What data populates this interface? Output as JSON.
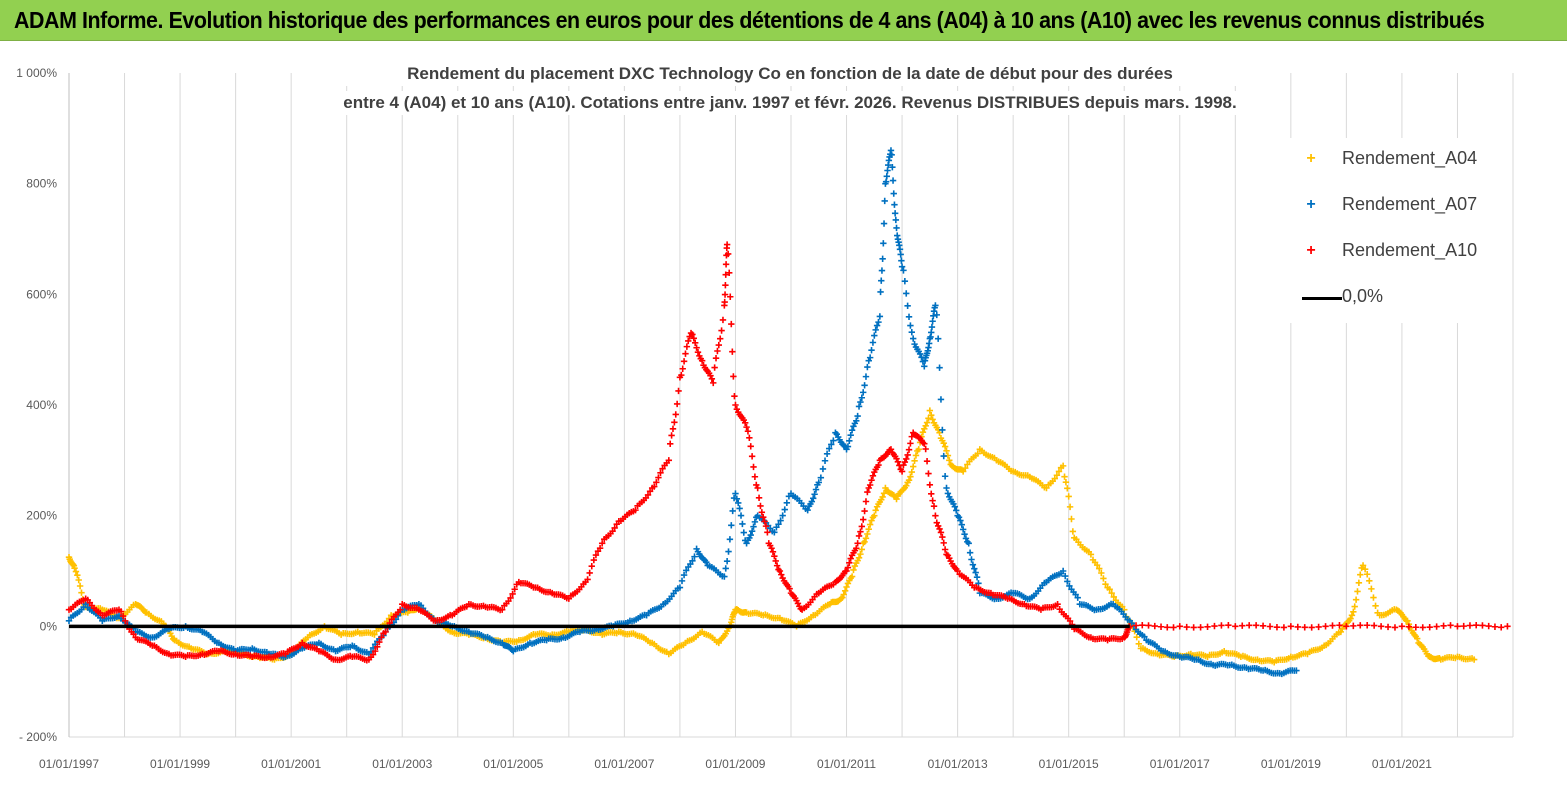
{
  "header": {
    "title": "ADAM Informe. Evolution historique des performances en euros pour des détentions de 4 ans (A04) à 10 ans (A10) avec les revenus connus distribués"
  },
  "chart_data": {
    "type": "scatter",
    "title_line1": "Rendement du placement DXC Technology Co en fonction de la date de début pour des durées",
    "title_line2": "entre 4 (A04) et 10 ans (A10).  Cotations entre janv. 1997 et févr. 2026. Revenus DISTRIBUES depuis mars. 1998.",
    "x_range": [
      "01/01/1997",
      "01/01/2023"
    ],
    "y_range": [
      -200,
      1000
    ],
    "y_ticks": [
      -200,
      0,
      200,
      400,
      600,
      800,
      1000
    ],
    "y_tick_labels": [
      "- 200%",
      "0%",
      "200%",
      "400%",
      "600%",
      "800%",
      "1 000%"
    ],
    "x_tick_labels": [
      "01/01/1997",
      "01/01/1999",
      "01/01/2001",
      "01/01/2003",
      "01/01/2005",
      "01/01/2007",
      "01/01/2009",
      "01/01/2011",
      "01/01/2013",
      "01/01/2015",
      "01/01/2017",
      "01/01/2019",
      "01/01/2021"
    ],
    "x_tick_years": [
      1997,
      1999,
      2001,
      2003,
      2005,
      2007,
      2009,
      2011,
      2013,
      2015,
      2017,
      2019,
      2021
    ],
    "grid": "vertical",
    "legend_position": "right",
    "series": [
      {
        "name": "Rendement_A04",
        "color": "#ffc000",
        "marker": "+",
        "points": [
          [
            1997.0,
            125
          ],
          [
            1997.1,
            105
          ],
          [
            1997.3,
            35
          ],
          [
            1997.6,
            30
          ],
          [
            1997.9,
            15
          ],
          [
            1998.2,
            40
          ],
          [
            1998.4,
            25
          ],
          [
            1998.7,
            5
          ],
          [
            1998.9,
            -25
          ],
          [
            1999.2,
            -40
          ],
          [
            1999.5,
            -50
          ],
          [
            1999.8,
            -45
          ],
          [
            2000.1,
            -50
          ],
          [
            2000.4,
            -55
          ],
          [
            2000.7,
            -60
          ],
          [
            2001.0,
            -50
          ],
          [
            2001.3,
            -20
          ],
          [
            2001.6,
            0
          ],
          [
            2001.9,
            -15
          ],
          [
            2002.2,
            -10
          ],
          [
            2002.5,
            -15
          ],
          [
            2002.8,
            20
          ],
          [
            2003.1,
            25
          ],
          [
            2003.3,
            35
          ],
          [
            2003.6,
            10
          ],
          [
            2003.9,
            -10
          ],
          [
            2004.2,
            -15
          ],
          [
            2004.5,
            -20
          ],
          [
            2004.8,
            -30
          ],
          [
            2005.1,
            -25
          ],
          [
            2005.4,
            -15
          ],
          [
            2005.7,
            -15
          ],
          [
            2006.0,
            -10
          ],
          [
            2006.3,
            -5
          ],
          [
            2006.6,
            -15
          ],
          [
            2006.9,
            -10
          ],
          [
            2007.2,
            -15
          ],
          [
            2007.5,
            -30
          ],
          [
            2007.8,
            -50
          ],
          [
            2008.1,
            -30
          ],
          [
            2008.4,
            -10
          ],
          [
            2008.7,
            -30
          ],
          [
            2008.9,
            0
          ],
          [
            2009.0,
            30
          ],
          [
            2009.2,
            25
          ],
          [
            2009.5,
            20
          ],
          [
            2009.8,
            15
          ],
          [
            2010.1,
            0
          ],
          [
            2010.4,
            20
          ],
          [
            2010.7,
            40
          ],
          [
            2010.9,
            50
          ],
          [
            2011.1,
            90
          ],
          [
            2011.3,
            150
          ],
          [
            2011.5,
            200
          ],
          [
            2011.7,
            250
          ],
          [
            2011.9,
            230
          ],
          [
            2012.1,
            260
          ],
          [
            2012.3,
            320
          ],
          [
            2012.5,
            390
          ],
          [
            2012.7,
            340
          ],
          [
            2012.9,
            290
          ],
          [
            2013.1,
            280
          ],
          [
            2013.4,
            320
          ],
          [
            2013.7,
            300
          ],
          [
            2014.0,
            280
          ],
          [
            2014.3,
            270
          ],
          [
            2014.6,
            250
          ],
          [
            2014.9,
            290
          ],
          [
            2015.1,
            160
          ],
          [
            2015.4,
            130
          ],
          [
            2015.7,
            70
          ],
          [
            2016.0,
            30
          ],
          [
            2016.3,
            -40
          ],
          [
            2016.6,
            -50
          ],
          [
            2016.9,
            -55
          ],
          [
            2017.2,
            -50
          ],
          [
            2017.5,
            -55
          ],
          [
            2017.8,
            -45
          ],
          [
            2018.1,
            -55
          ],
          [
            2018.4,
            -60
          ],
          [
            2018.7,
            -65
          ],
          [
            2019.0,
            -55
          ],
          [
            2019.3,
            -50
          ],
          [
            2019.6,
            -35
          ],
          [
            2019.9,
            -10
          ],
          [
            2020.1,
            20
          ],
          [
            2020.3,
            110
          ],
          [
            2020.6,
            20
          ],
          [
            2020.9,
            30
          ],
          [
            2021.1,
            10
          ],
          [
            2021.3,
            -30
          ],
          [
            2021.5,
            -55
          ],
          [
            2021.7,
            -60
          ],
          [
            2022.0,
            -55
          ],
          [
            2022.3,
            -60
          ]
        ]
      },
      {
        "name": "Rendement_A07",
        "color": "#0070c0",
        "marker": "+",
        "points": [
          [
            1997.0,
            10
          ],
          [
            1997.3,
            40
          ],
          [
            1997.6,
            10
          ],
          [
            1997.9,
            20
          ],
          [
            1998.2,
            -10
          ],
          [
            1998.5,
            -20
          ],
          [
            1998.8,
            -5
          ],
          [
            1999.1,
            0
          ],
          [
            1999.4,
            -10
          ],
          [
            1999.7,
            -30
          ],
          [
            2000.0,
            -45
          ],
          [
            2000.3,
            -40
          ],
          [
            2000.6,
            -50
          ],
          [
            2000.9,
            -55
          ],
          [
            2001.2,
            -40
          ],
          [
            2001.5,
            -30
          ],
          [
            2001.8,
            -45
          ],
          [
            2002.1,
            -35
          ],
          [
            2002.4,
            -50
          ],
          [
            2002.7,
            -10
          ],
          [
            2003.0,
            30
          ],
          [
            2003.3,
            40
          ],
          [
            2003.6,
            10
          ],
          [
            2003.9,
            0
          ],
          [
            2004.2,
            -10
          ],
          [
            2004.5,
            -20
          ],
          [
            2004.8,
            -30
          ],
          [
            2005.0,
            -45
          ],
          [
            2005.3,
            -30
          ],
          [
            2005.6,
            -25
          ],
          [
            2005.9,
            -20
          ],
          [
            2006.2,
            -10
          ],
          [
            2006.5,
            -5
          ],
          [
            2006.8,
            0
          ],
          [
            2007.1,
            10
          ],
          [
            2007.4,
            20
          ],
          [
            2007.7,
            40
          ],
          [
            2008.0,
            70
          ],
          [
            2008.3,
            140
          ],
          [
            2008.5,
            110
          ],
          [
            2008.8,
            90
          ],
          [
            2009.0,
            240
          ],
          [
            2009.2,
            150
          ],
          [
            2009.4,
            200
          ],
          [
            2009.7,
            170
          ],
          [
            2010.0,
            240
          ],
          [
            2010.3,
            210
          ],
          [
            2010.5,
            260
          ],
          [
            2010.8,
            350
          ],
          [
            2011.0,
            320
          ],
          [
            2011.2,
            380
          ],
          [
            2011.4,
            480
          ],
          [
            2011.6,
            560
          ],
          [
            2011.7,
            800
          ],
          [
            2011.8,
            860
          ],
          [
            2011.9,
            720
          ],
          [
            2012.0,
            650
          ],
          [
            2012.2,
            520
          ],
          [
            2012.4,
            470
          ],
          [
            2012.5,
            520
          ],
          [
            2012.6,
            580
          ],
          [
            2012.8,
            250
          ],
          [
            2013.0,
            200
          ],
          [
            2013.2,
            150
          ],
          [
            2013.4,
            60
          ],
          [
            2013.7,
            50
          ],
          [
            2014.0,
            60
          ],
          [
            2014.3,
            50
          ],
          [
            2014.6,
            80
          ],
          [
            2014.9,
            100
          ],
          [
            2015.2,
            40
          ],
          [
            2015.5,
            30
          ],
          [
            2015.8,
            40
          ],
          [
            2016.1,
            10
          ],
          [
            2016.4,
            -25
          ],
          [
            2016.7,
            -45
          ],
          [
            2017.0,
            -55
          ],
          [
            2017.3,
            -60
          ],
          [
            2017.6,
            -70
          ],
          [
            2017.9,
            -70
          ],
          [
            2018.2,
            -75
          ],
          [
            2018.5,
            -80
          ],
          [
            2018.8,
            -85
          ],
          [
            2019.1,
            -80
          ]
        ]
      },
      {
        "name": "Rendement_A10",
        "color": "#ff0000",
        "marker": "+",
        "points": [
          [
            1997.0,
            30
          ],
          [
            1997.3,
            50
          ],
          [
            1997.6,
            20
          ],
          [
            1997.9,
            30
          ],
          [
            1998.2,
            -20
          ],
          [
            1998.5,
            -35
          ],
          [
            1998.8,
            -50
          ],
          [
            1999.1,
            -55
          ],
          [
            1999.4,
            -50
          ],
          [
            1999.7,
            -45
          ],
          [
            2000.0,
            -50
          ],
          [
            2000.3,
            -55
          ],
          [
            2000.6,
            -55
          ],
          [
            2000.9,
            -50
          ],
          [
            2001.2,
            -30
          ],
          [
            2001.5,
            -45
          ],
          [
            2001.8,
            -60
          ],
          [
            2002.1,
            -55
          ],
          [
            2002.4,
            -60
          ],
          [
            2002.7,
            -10
          ],
          [
            2003.0,
            40
          ],
          [
            2003.3,
            30
          ],
          [
            2003.6,
            10
          ],
          [
            2003.9,
            20
          ],
          [
            2004.2,
            40
          ],
          [
            2004.5,
            35
          ],
          [
            2004.8,
            30
          ],
          [
            2005.1,
            80
          ],
          [
            2005.4,
            70
          ],
          [
            2005.7,
            60
          ],
          [
            2006.0,
            50
          ],
          [
            2006.3,
            80
          ],
          [
            2006.6,
            150
          ],
          [
            2006.9,
            190
          ],
          [
            2007.2,
            210
          ],
          [
            2007.5,
            250
          ],
          [
            2007.8,
            300
          ],
          [
            2008.0,
            450
          ],
          [
            2008.2,
            530
          ],
          [
            2008.4,
            480
          ],
          [
            2008.6,
            440
          ],
          [
            2008.8,
            580
          ],
          [
            2008.85,
            690
          ],
          [
            2009.0,
            400
          ],
          [
            2009.2,
            360
          ],
          [
            2009.4,
            250
          ],
          [
            2009.6,
            150
          ],
          [
            2009.8,
            100
          ],
          [
            2010.0,
            60
          ],
          [
            2010.2,
            30
          ],
          [
            2010.5,
            60
          ],
          [
            2010.8,
            80
          ],
          [
            2011.0,
            100
          ],
          [
            2011.2,
            150
          ],
          [
            2011.4,
            250
          ],
          [
            2011.6,
            300
          ],
          [
            2011.8,
            320
          ],
          [
            2012.0,
            280
          ],
          [
            2012.2,
            350
          ],
          [
            2012.4,
            330
          ],
          [
            2012.6,
            200
          ],
          [
            2012.8,
            130
          ],
          [
            2013.0,
            100
          ],
          [
            2013.3,
            70
          ],
          [
            2013.6,
            60
          ],
          [
            2013.9,
            50
          ],
          [
            2014.2,
            40
          ],
          [
            2014.5,
            30
          ],
          [
            2014.8,
            40
          ],
          [
            2015.1,
            -5
          ],
          [
            2015.4,
            -20
          ],
          [
            2015.7,
            -25
          ],
          [
            2016.0,
            -20
          ],
          [
            2016.1,
            0
          ],
          [
            2017.0,
            0
          ],
          [
            2018.0,
            0
          ],
          [
            2019.0,
            0
          ],
          [
            2020.0,
            0
          ],
          [
            2021.0,
            0
          ],
          [
            2022.0,
            0
          ],
          [
            2022.9,
            0
          ]
        ]
      },
      {
        "name": "0,0%",
        "color": "#000000",
        "marker": "line",
        "points": [
          [
            1997.0,
            0
          ],
          [
            2016.1,
            0
          ]
        ]
      }
    ]
  }
}
